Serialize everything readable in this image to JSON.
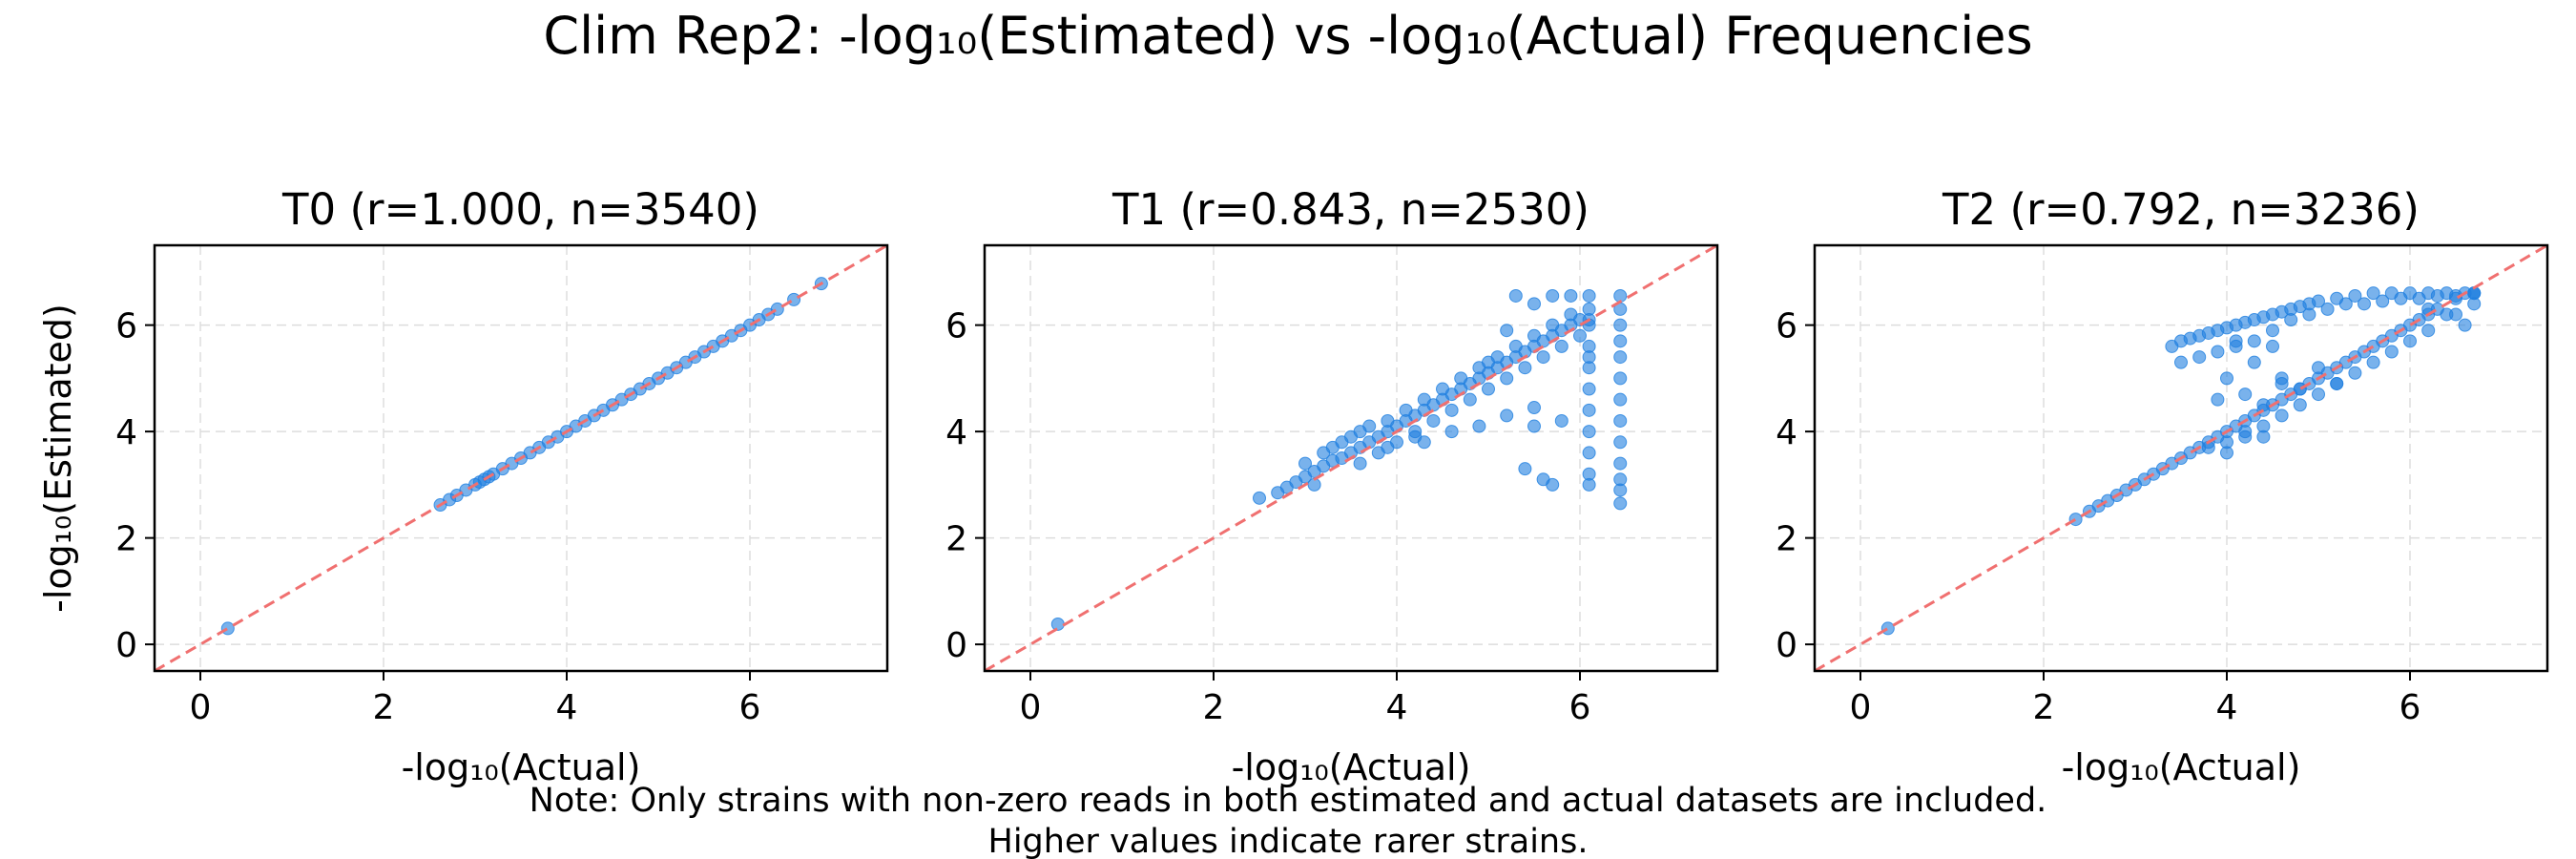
{
  "figure": {
    "title": "Clim Rep2: -log₁₀(Estimated) vs -log₁₀(Actual) Frequencies",
    "note_line1": "Note: Only strains with non-zero reads in both estimated and actual datasets are included.",
    "note_line2": "Higher values indicate rarer strains."
  },
  "style": {
    "point_color": "#1f7fe0",
    "reference_line_color": "#f07070",
    "grid_color": "#dddddd"
  },
  "chart_data": [
    {
      "type": "scatter",
      "title": "T0 (r=1.000, n=3540)",
      "xlabel": "-log₁₀(Actual)",
      "ylabel": "-log₁₀(Estimated)",
      "xlim": [
        -0.5,
        7.5
      ],
      "ylim": [
        -0.5,
        7.5
      ],
      "xticks": [
        0,
        2,
        4,
        6
      ],
      "yticks": [
        0,
        2,
        4,
        6
      ],
      "grid": true,
      "reference_line": "y = x",
      "points": {
        "x": [
          0.3,
          2.62,
          2.72,
          2.8,
          2.9,
          3.0,
          3.05,
          3.1,
          3.15,
          3.2,
          3.3,
          3.4,
          3.5,
          3.6,
          3.7,
          3.8,
          3.9,
          4.0,
          4.1,
          4.2,
          4.3,
          4.4,
          4.5,
          4.6,
          4.7,
          4.8,
          4.9,
          5.0,
          5.1,
          5.2,
          5.3,
          5.4,
          5.5,
          5.6,
          5.7,
          5.8,
          5.9,
          6.0,
          6.1,
          6.2,
          6.3,
          6.48,
          6.78
        ],
        "y": [
          0.3,
          2.62,
          2.72,
          2.8,
          2.9,
          3.0,
          3.05,
          3.1,
          3.15,
          3.2,
          3.3,
          3.4,
          3.5,
          3.6,
          3.7,
          3.8,
          3.9,
          4.0,
          4.1,
          4.2,
          4.3,
          4.4,
          4.5,
          4.6,
          4.7,
          4.8,
          4.9,
          5.0,
          5.1,
          5.2,
          5.3,
          5.4,
          5.5,
          5.6,
          5.7,
          5.8,
          5.9,
          6.0,
          6.1,
          6.2,
          6.3,
          6.48,
          6.78
        ]
      }
    },
    {
      "type": "scatter",
      "title": "T1 (r=0.843, n=2530)",
      "xlabel": "-log₁₀(Actual)",
      "ylabel": "",
      "xlim": [
        -0.5,
        7.5
      ],
      "ylim": [
        -0.5,
        7.5
      ],
      "xticks": [
        0,
        2,
        4,
        6
      ],
      "yticks": [
        0,
        2,
        4,
        6
      ],
      "grid": true,
      "reference_line": "y = x",
      "points": {
        "x": [
          0.3,
          2.5,
          2.7,
          2.8,
          2.9,
          3.0,
          3.0,
          3.1,
          3.1,
          3.2,
          3.2,
          3.3,
          3.3,
          3.4,
          3.4,
          3.5,
          3.5,
          3.6,
          3.6,
          3.7,
          3.7,
          3.8,
          3.8,
          3.9,
          3.9,
          4.0,
          4.0,
          4.1,
          4.1,
          4.2,
          4.2,
          4.3,
          4.3,
          4.4,
          4.4,
          4.5,
          4.5,
          4.6,
          4.6,
          4.7,
          4.7,
          4.8,
          4.8,
          4.9,
          4.9,
          5.0,
          5.0,
          5.0,
          5.1,
          5.1,
          5.2,
          5.2,
          5.3,
          5.3,
          5.4,
          5.4,
          5.5,
          5.5,
          5.6,
          5.6,
          5.7,
          5.7,
          5.8,
          5.8,
          5.9,
          5.9,
          6.0,
          6.0,
          6.1,
          6.1,
          6.1,
          6.1,
          6.1,
          6.1,
          6.1,
          6.1,
          6.1,
          6.1,
          6.1,
          6.1,
          6.1,
          6.44,
          6.44,
          6.44,
          6.44,
          6.44,
          6.44,
          6.44,
          6.44,
          6.44,
          6.44,
          6.44,
          6.44,
          6.44,
          4.3,
          4.6,
          4.9,
          5.2,
          5.5,
          5.5,
          5.8,
          5.4,
          5.6,
          5.7,
          3.6,
          3.9,
          4.2,
          5.3,
          5.7,
          5.9,
          5.5,
          5.2
        ],
        "y": [
          0.38,
          2.75,
          2.85,
          2.95,
          3.05,
          3.15,
          3.4,
          3.25,
          3.0,
          3.35,
          3.6,
          3.45,
          3.7,
          3.5,
          3.8,
          3.6,
          3.9,
          3.7,
          4.0,
          3.8,
          4.1,
          3.9,
          3.6,
          4.0,
          4.2,
          4.1,
          3.8,
          4.2,
          4.4,
          4.3,
          4.0,
          4.4,
          4.6,
          4.5,
          4.2,
          4.6,
          4.8,
          4.7,
          4.4,
          4.8,
          5.0,
          4.9,
          4.6,
          5.0,
          5.2,
          5.1,
          4.8,
          5.3,
          5.2,
          5.4,
          5.3,
          5.0,
          5.4,
          5.6,
          5.5,
          5.2,
          5.6,
          5.8,
          5.7,
          5.4,
          5.8,
          6.0,
          5.9,
          5.6,
          6.0,
          6.2,
          6.1,
          5.8,
          6.55,
          6.3,
          6.0,
          5.6,
          5.2,
          4.8,
          4.4,
          4.0,
          3.6,
          3.2,
          3.0,
          6.1,
          5.4,
          6.55,
          6.3,
          6.0,
          5.7,
          5.4,
          5.0,
          4.6,
          4.2,
          3.8,
          3.4,
          3.1,
          2.9,
          2.65,
          3.8,
          4.0,
          4.1,
          4.3,
          4.1,
          4.45,
          4.2,
          3.3,
          3.1,
          3.0,
          3.4,
          3.7,
          3.9,
          6.55,
          6.55,
          6.55,
          6.4,
          5.9
        ]
      }
    },
    {
      "type": "scatter",
      "title": "T2 (r=0.792, n=3236)",
      "xlabel": "-log₁₀(Actual)",
      "ylabel": "",
      "xlim": [
        -0.5,
        7.5
      ],
      "ylim": [
        -0.5,
        7.5
      ],
      "xticks": [
        0,
        2,
        4,
        6
      ],
      "yticks": [
        0,
        2,
        4,
        6
      ],
      "grid": true,
      "reference_line": "y = x",
      "points": {
        "x": [
          0.3,
          2.35,
          2.5,
          2.6,
          2.7,
          2.8,
          2.9,
          3.0,
          3.1,
          3.2,
          3.3,
          3.4,
          3.5,
          3.6,
          3.7,
          3.8,
          3.9,
          4.0,
          4.1,
          4.2,
          4.3,
          4.4,
          4.5,
          4.6,
          4.7,
          4.8,
          4.9,
          5.0,
          5.1,
          5.2,
          5.3,
          5.4,
          5.5,
          5.6,
          5.7,
          5.8,
          5.9,
          6.0,
          6.1,
          6.2,
          6.3,
          6.5,
          6.7,
          3.4,
          3.5,
          3.6,
          3.7,
          3.8,
          3.9,
          4.0,
          4.1,
          4.2,
          4.3,
          4.4,
          4.5,
          4.6,
          4.7,
          4.8,
          4.9,
          5.0,
          5.2,
          5.4,
          5.6,
          5.8,
          6.0,
          6.2,
          6.4,
          6.6,
          6.7,
          3.5,
          3.7,
          3.9,
          4.1,
          4.3,
          4.5,
          4.7,
          4.9,
          5.1,
          5.3,
          5.5,
          5.7,
          5.9,
          6.1,
          6.3,
          6.5,
          6.7,
          6.2,
          6.4,
          6.6,
          4.0,
          4.2,
          4.4,
          4.3,
          4.5,
          4.1,
          4.6,
          4.8,
          3.9,
          4.2,
          4.4,
          4.6,
          5.0,
          5.2,
          4.0,
          3.8,
          4.0,
          4.2,
          4.4,
          4.6,
          4.8,
          5.0,
          5.2,
          5.4,
          5.6,
          5.8,
          6.0,
          6.2,
          6.5,
          6.7
        ],
        "y": [
          0.3,
          2.35,
          2.5,
          2.6,
          2.7,
          2.8,
          2.9,
          3.0,
          3.1,
          3.2,
          3.3,
          3.4,
          3.5,
          3.6,
          3.7,
          3.8,
          3.9,
          4.0,
          4.1,
          4.2,
          4.3,
          4.4,
          4.5,
          4.6,
          4.7,
          4.8,
          4.9,
          5.0,
          5.1,
          5.2,
          5.3,
          5.4,
          5.5,
          5.6,
          5.7,
          5.8,
          5.9,
          6.0,
          6.1,
          6.2,
          6.3,
          6.5,
          6.6,
          5.6,
          5.7,
          5.75,
          5.8,
          5.85,
          5.9,
          5.95,
          6.0,
          6.05,
          6.1,
          6.15,
          6.2,
          6.25,
          6.3,
          6.35,
          6.4,
          6.45,
          6.5,
          6.55,
          6.6,
          6.6,
          6.6,
          6.6,
          6.6,
          6.6,
          6.6,
          5.3,
          5.4,
          5.5,
          5.6,
          5.7,
          5.9,
          6.1,
          6.2,
          6.3,
          6.4,
          6.4,
          6.45,
          6.5,
          6.5,
          6.55,
          6.55,
          6.6,
          6.3,
          6.2,
          6.0,
          5.0,
          4.7,
          4.5,
          5.3,
          5.6,
          5.7,
          5.0,
          4.8,
          4.6,
          4.0,
          3.9,
          4.9,
          5.2,
          4.9,
          3.6,
          3.7,
          3.8,
          3.9,
          4.1,
          4.3,
          4.5,
          4.7,
          4.9,
          5.1,
          5.3,
          5.5,
          5.7,
          5.9,
          6.2,
          6.4
        ]
      }
    }
  ]
}
